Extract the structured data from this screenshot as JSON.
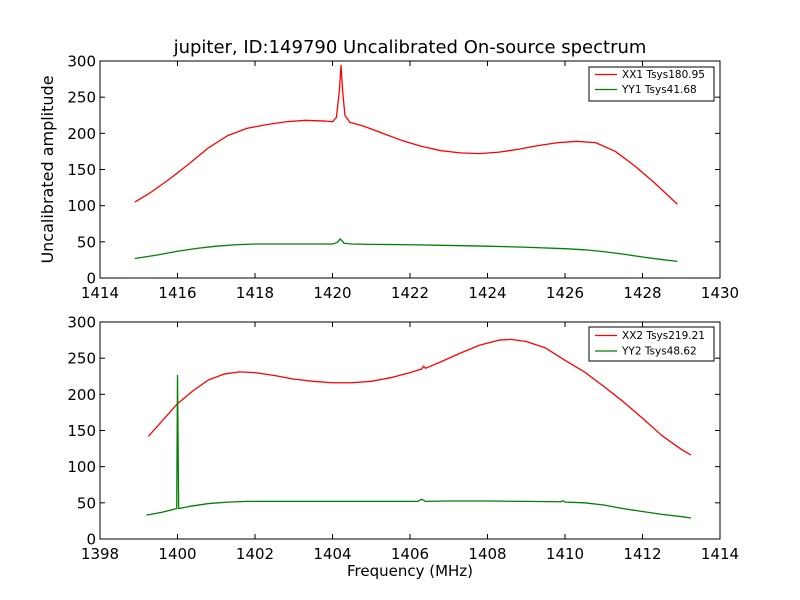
{
  "title": "jupiter, ID:149790 Uncalibrated On-source spectrum",
  "chart_data": [
    {
      "type": "line",
      "xlabel": "",
      "ylabel": "Uncalibrated amplitude",
      "xlim": [
        1414,
        1430
      ],
      "ylim": [
        0,
        300
      ],
      "xticks": [
        1414,
        1416,
        1418,
        1420,
        1422,
        1424,
        1426,
        1428,
        1430
      ],
      "yticks": [
        0,
        50,
        100,
        150,
        200,
        250,
        300
      ],
      "legend_position": "top-right",
      "series": [
        {
          "name": "XX1 Tsys180.95",
          "color": "#ff0000",
          "points": [
            [
              1414.9,
              105
            ],
            [
              1415.3,
              118
            ],
            [
              1415.8,
              137
            ],
            [
              1416.3,
              158
            ],
            [
              1416.8,
              180
            ],
            [
              1417.3,
              197
            ],
            [
              1417.8,
              207
            ],
            [
              1418.3,
              212
            ],
            [
              1418.8,
              216
            ],
            [
              1419.3,
              218
            ],
            [
              1419.8,
              217
            ],
            [
              1420.0,
              216
            ],
            [
              1420.1,
              222
            ],
            [
              1420.18,
              260
            ],
            [
              1420.22,
              294
            ],
            [
              1420.26,
              260
            ],
            [
              1420.32,
              225
            ],
            [
              1420.45,
              215
            ],
            [
              1420.6,
              213
            ],
            [
              1420.8,
              210
            ],
            [
              1421.3,
              200
            ],
            [
              1421.8,
              190
            ],
            [
              1422.3,
              182
            ],
            [
              1422.8,
              176
            ],
            [
              1423.3,
              173
            ],
            [
              1423.8,
              172
            ],
            [
              1424.3,
              174
            ],
            [
              1424.8,
              178
            ],
            [
              1425.3,
              183
            ],
            [
              1425.8,
              187
            ],
            [
              1426.3,
              189
            ],
            [
              1426.8,
              187
            ],
            [
              1427.3,
              175
            ],
            [
              1427.8,
              155
            ],
            [
              1428.3,
              132
            ],
            [
              1428.9,
              102
            ]
          ]
        },
        {
          "name": "YY1 Tsys41.68",
          "color": "#008000",
          "points": [
            [
              1414.9,
              27
            ],
            [
              1415.5,
              32
            ],
            [
              1416.0,
              37
            ],
            [
              1416.5,
              41
            ],
            [
              1417.0,
              44
            ],
            [
              1417.5,
              46
            ],
            [
              1418.0,
              47
            ],
            [
              1418.5,
              47
            ],
            [
              1419.0,
              47
            ],
            [
              1419.5,
              47
            ],
            [
              1420.0,
              47
            ],
            [
              1420.12,
              49
            ],
            [
              1420.2,
              54
            ],
            [
              1420.3,
              48
            ],
            [
              1420.5,
              47
            ],
            [
              1421.0,
              46.5
            ],
            [
              1422.0,
              46
            ],
            [
              1423.0,
              45
            ],
            [
              1424.0,
              44
            ],
            [
              1425.0,
              42.5
            ],
            [
              1426.0,
              40.5
            ],
            [
              1426.5,
              39
            ],
            [
              1427.0,
              36.5
            ],
            [
              1427.5,
              33
            ],
            [
              1428.0,
              29
            ],
            [
              1428.5,
              25.5
            ],
            [
              1428.9,
              23
            ]
          ]
        }
      ]
    },
    {
      "type": "line",
      "xlabel": "Frequency (MHz)",
      "ylabel": "",
      "xlim": [
        1398,
        1414
      ],
      "ylim": [
        0,
        300
      ],
      "xticks": [
        1398,
        1400,
        1402,
        1404,
        1406,
        1408,
        1410,
        1412,
        1414
      ],
      "yticks": [
        0,
        50,
        100,
        150,
        200,
        250,
        300
      ],
      "legend_position": "top-right",
      "series": [
        {
          "name": "XX2 Tsys219.21",
          "color": "#ff0000",
          "points": [
            [
              1399.25,
              142
            ],
            [
              1399.6,
              163
            ],
            [
              1400.0,
              187
            ],
            [
              1400.4,
              205
            ],
            [
              1400.8,
              220
            ],
            [
              1401.2,
              228
            ],
            [
              1401.6,
              231
            ],
            [
              1402.0,
              230
            ],
            [
              1402.5,
              226
            ],
            [
              1403.0,
              221
            ],
            [
              1403.5,
              218
            ],
            [
              1404.0,
              216
            ],
            [
              1404.5,
              216
            ],
            [
              1405.0,
              218
            ],
            [
              1405.5,
              223
            ],
            [
              1406.0,
              230
            ],
            [
              1406.3,
              235
            ],
            [
              1406.35,
              239
            ],
            [
              1406.4,
              236
            ],
            [
              1406.8,
              245
            ],
            [
              1407.3,
              257
            ],
            [
              1407.8,
              268
            ],
            [
              1408.3,
              275
            ],
            [
              1408.6,
              276
            ],
            [
              1409.0,
              273
            ],
            [
              1409.5,
              264
            ],
            [
              1410.0,
              247
            ],
            [
              1410.5,
              231
            ],
            [
              1411.0,
              211
            ],
            [
              1411.5,
              190
            ],
            [
              1412.0,
              167
            ],
            [
              1412.5,
              143
            ],
            [
              1413.0,
              124
            ],
            [
              1413.25,
              116
            ]
          ]
        },
        {
          "name": "YY2 Tsys48.62",
          "color": "#008000",
          "points": [
            [
              1399.2,
              33
            ],
            [
              1399.6,
              37
            ],
            [
              1399.98,
              42
            ],
            [
              1400.0,
              226
            ],
            [
              1400.03,
              42
            ],
            [
              1400.3,
              45
            ],
            [
              1400.8,
              49
            ],
            [
              1401.3,
              51
            ],
            [
              1401.8,
              52
            ],
            [
              1402.5,
              52
            ],
            [
              1403.5,
              52
            ],
            [
              1404.5,
              52
            ],
            [
              1405.5,
              52
            ],
            [
              1406.2,
              52
            ],
            [
              1406.3,
              55
            ],
            [
              1406.4,
              52
            ],
            [
              1407.0,
              52.5
            ],
            [
              1408.0,
              52.5
            ],
            [
              1409.0,
              52
            ],
            [
              1409.9,
              51.5
            ],
            [
              1409.95,
              53
            ],
            [
              1410.0,
              51
            ],
            [
              1410.5,
              50
            ],
            [
              1411.0,
              47
            ],
            [
              1411.5,
              42
            ],
            [
              1412.0,
              38
            ],
            [
              1412.5,
              34
            ],
            [
              1413.0,
              31
            ],
            [
              1413.25,
              29
            ]
          ]
        }
      ]
    }
  ]
}
